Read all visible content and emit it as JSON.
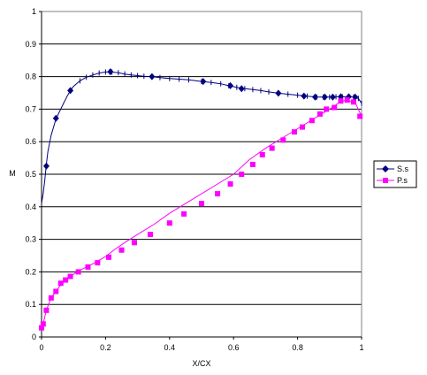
{
  "chart_data": {
    "type": "line",
    "xlabel": "X/CX",
    "ylabel": "M",
    "xlim": [
      0,
      1
    ],
    "ylim": [
      0,
      1
    ],
    "x_ticks": [
      "0",
      "0.2",
      "0.4",
      "0.6",
      "0.8",
      "1"
    ],
    "y_ticks": [
      "0",
      "0.1",
      "0.2",
      "0.3",
      "0.4",
      "0.5",
      "0.6",
      "0.7",
      "0.8",
      "0.9",
      "1"
    ],
    "grid": "horizontal",
    "legend_position": "right",
    "series": [
      {
        "name": "S.s",
        "color": "#000080",
        "marker": "diamond",
        "points": [
          [
            0.0,
            0.41
          ],
          [
            0.005,
            0.44
          ],
          [
            0.01,
            0.48
          ],
          [
            0.015,
            0.53
          ],
          [
            0.02,
            0.57
          ],
          [
            0.03,
            0.62
          ],
          [
            0.045,
            0.67
          ],
          [
            0.06,
            0.7
          ],
          [
            0.07,
            0.72
          ],
          [
            0.08,
            0.74
          ],
          [
            0.09,
            0.757
          ],
          [
            0.1,
            0.77
          ],
          [
            0.12,
            0.787
          ],
          [
            0.14,
            0.798
          ],
          [
            0.16,
            0.805
          ],
          [
            0.18,
            0.811
          ],
          [
            0.2,
            0.814
          ],
          [
            0.22,
            0.814
          ],
          [
            0.24,
            0.812
          ],
          [
            0.26,
            0.808
          ],
          [
            0.28,
            0.805
          ],
          [
            0.3,
            0.803
          ],
          [
            0.32,
            0.801
          ],
          [
            0.345,
            0.8
          ],
          [
            0.37,
            0.797
          ],
          [
            0.4,
            0.794
          ],
          [
            0.43,
            0.792
          ],
          [
            0.46,
            0.79
          ],
          [
            0.5,
            0.785
          ],
          [
            0.53,
            0.782
          ],
          [
            0.56,
            0.778
          ],
          [
            0.585,
            0.772
          ],
          [
            0.61,
            0.767
          ],
          [
            0.635,
            0.763
          ],
          [
            0.66,
            0.76
          ],
          [
            0.685,
            0.757
          ],
          [
            0.71,
            0.753
          ],
          [
            0.74,
            0.749
          ],
          [
            0.77,
            0.746
          ],
          [
            0.8,
            0.743
          ],
          [
            0.83,
            0.74
          ],
          [
            0.86,
            0.737
          ],
          [
            0.88,
            0.737
          ],
          [
            0.9,
            0.737
          ],
          [
            0.92,
            0.738
          ],
          [
            0.94,
            0.738
          ],
          [
            0.96,
            0.738
          ],
          [
            0.975,
            0.737
          ],
          [
            0.99,
            0.733
          ],
          [
            1.0,
            0.718
          ]
        ],
        "markers": [
          [
            0.015,
            0.525
          ],
          [
            0.045,
            0.672
          ],
          [
            0.09,
            0.757
          ],
          [
            0.215,
            0.815
          ],
          [
            0.345,
            0.8
          ],
          [
            0.505,
            0.785
          ],
          [
            0.59,
            0.772
          ],
          [
            0.625,
            0.763
          ],
          [
            0.74,
            0.749
          ],
          [
            0.82,
            0.74
          ],
          [
            0.855,
            0.737
          ],
          [
            0.885,
            0.737
          ],
          [
            0.91,
            0.737
          ],
          [
            0.935,
            0.738
          ],
          [
            0.96,
            0.738
          ],
          [
            0.98,
            0.737
          ]
        ]
      },
      {
        "name": "P.s",
        "color": "#ff00ff",
        "marker": "square",
        "points": [
          [
            0.0,
            0.028
          ],
          [
            0.005,
            0.04
          ],
          [
            0.015,
            0.082
          ],
          [
            0.03,
            0.12
          ],
          [
            0.045,
            0.14
          ],
          [
            0.06,
            0.16
          ],
          [
            0.075,
            0.175
          ],
          [
            0.09,
            0.185
          ],
          [
            0.11,
            0.2
          ],
          [
            0.14,
            0.215
          ],
          [
            0.17,
            0.23
          ],
          [
            0.2,
            0.247
          ],
          [
            0.23,
            0.27
          ],
          [
            0.26,
            0.29
          ],
          [
            0.3,
            0.315
          ],
          [
            0.35,
            0.345
          ],
          [
            0.4,
            0.38
          ],
          [
            0.45,
            0.41
          ],
          [
            0.5,
            0.44
          ],
          [
            0.55,
            0.47
          ],
          [
            0.6,
            0.5
          ],
          [
            0.65,
            0.545
          ],
          [
            0.7,
            0.58
          ],
          [
            0.75,
            0.61
          ],
          [
            0.8,
            0.64
          ],
          [
            0.85,
            0.67
          ],
          [
            0.9,
            0.7
          ],
          [
            0.93,
            0.72
          ],
          [
            0.95,
            0.728
          ],
          [
            0.98,
            0.72
          ],
          [
            1.0,
            0.678
          ]
        ],
        "markers": [
          [
            0.0,
            0.028
          ],
          [
            0.005,
            0.04
          ],
          [
            0.015,
            0.082
          ],
          [
            0.03,
            0.12
          ],
          [
            0.045,
            0.14
          ],
          [
            0.06,
            0.165
          ],
          [
            0.075,
            0.175
          ],
          [
            0.09,
            0.186
          ],
          [
            0.115,
            0.2
          ],
          [
            0.145,
            0.215
          ],
          [
            0.175,
            0.228
          ],
          [
            0.21,
            0.245
          ],
          [
            0.25,
            0.267
          ],
          [
            0.29,
            0.29
          ],
          [
            0.34,
            0.315
          ],
          [
            0.4,
            0.35
          ],
          [
            0.445,
            0.378
          ],
          [
            0.5,
            0.41
          ],
          [
            0.55,
            0.44
          ],
          [
            0.59,
            0.47
          ],
          [
            0.625,
            0.5
          ],
          [
            0.66,
            0.53
          ],
          [
            0.69,
            0.56
          ],
          [
            0.72,
            0.58
          ],
          [
            0.755,
            0.605
          ],
          [
            0.79,
            0.63
          ],
          [
            0.815,
            0.645
          ],
          [
            0.845,
            0.665
          ],
          [
            0.87,
            0.685
          ],
          [
            0.89,
            0.7
          ],
          [
            0.915,
            0.705
          ],
          [
            0.935,
            0.725
          ],
          [
            0.955,
            0.728
          ],
          [
            0.975,
            0.722
          ],
          [
            0.995,
            0.678
          ]
        ]
      }
    ]
  }
}
